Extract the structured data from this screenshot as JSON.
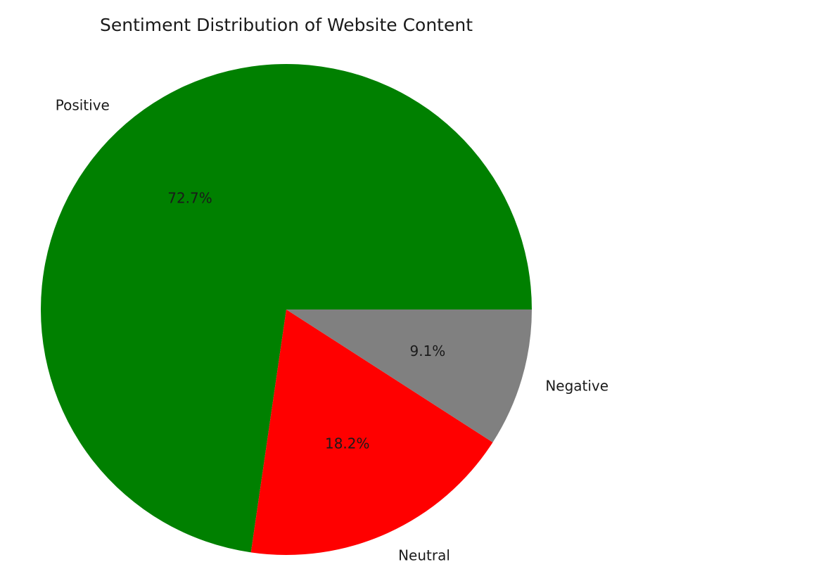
{
  "chart_data": {
    "type": "pie",
    "title": "Sentiment Distribution of Website Content",
    "slices": [
      {
        "label": "Positive",
        "value": 72.7,
        "pct_label": "72.7%",
        "color": "#008000"
      },
      {
        "label": "Neutral",
        "value": 18.2,
        "pct_label": "18.2%",
        "color": "#ff0000"
      },
      {
        "label": "Negative",
        "value": 9.1,
        "pct_label": "9.1%",
        "color": "#808080"
      }
    ],
    "start_angle_deg": 0,
    "direction": "counterclockwise"
  }
}
